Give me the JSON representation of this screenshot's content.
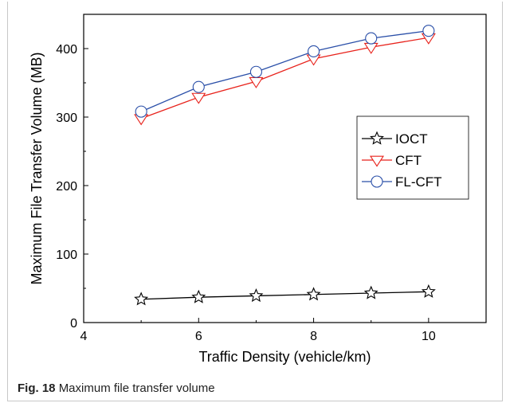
{
  "caption": {
    "label": "Fig. 18",
    "text": "Maximum file transfer volume"
  },
  "chart_data": {
    "type": "line",
    "title": "",
    "xlabel": "Traffic Density (vehicle/km)",
    "ylabel": "Maximum File Transfer Volume (MB)",
    "xlim": [
      4,
      11
    ],
    "ylim": [
      0,
      450
    ],
    "xticks": [
      4,
      6,
      8,
      10
    ],
    "yticks": [
      0,
      100,
      200,
      300,
      400
    ],
    "grid": false,
    "legend_position": "right-middle",
    "x": [
      5,
      6,
      7,
      8,
      9,
      10
    ],
    "series": [
      {
        "name": "IOCT",
        "marker": "star",
        "color": "#000000",
        "values": [
          34,
          37,
          39,
          41,
          43,
          45
        ]
      },
      {
        "name": "CFT",
        "marker": "triangle-down",
        "color": "#e8221b",
        "values": [
          298,
          329,
          352,
          385,
          402,
          416
        ]
      },
      {
        "name": "FL-CFT",
        "marker": "circle",
        "color": "#2a4fa8",
        "values": [
          308,
          344,
          366,
          396,
          415,
          426
        ]
      }
    ]
  }
}
